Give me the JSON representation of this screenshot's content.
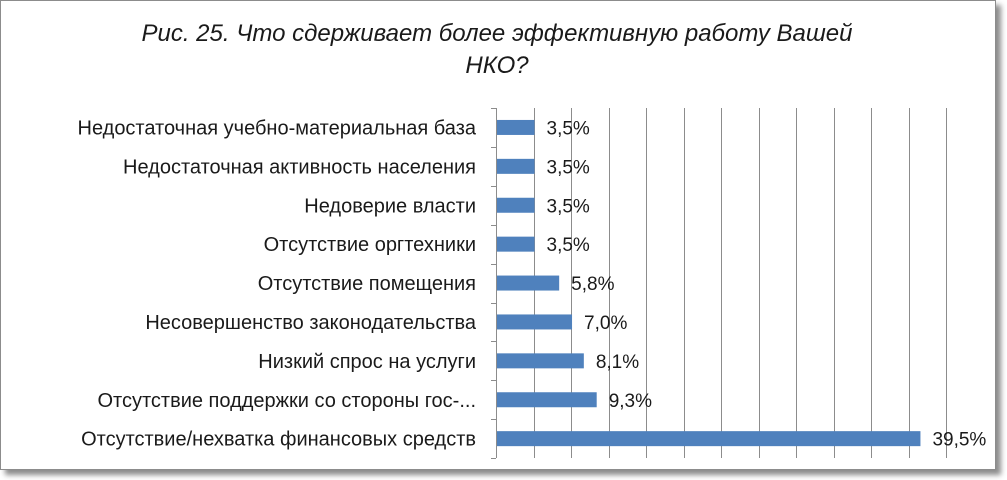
{
  "chart_data": {
    "type": "bar",
    "orientation": "horizontal",
    "title_lines": [
      "Рис. 25. Что сдерживает более эффективную работу Вашей",
      "НКО?"
    ],
    "categories": [
      "Недостаточная учебно-материальная база",
      "Недостаточная активность населения",
      "Недоверие власти",
      "Отсутствие оргтехники",
      "Отсутствие помещения",
      "Несовершенство законодательства",
      "Низкий спрос на услуги",
      "Отсутствие поддержки со стороны гос-...",
      "Отсутствие/нехватка финансовых средств"
    ],
    "values": [
      3.5,
      3.5,
      3.5,
      3.5,
      5.8,
      7.0,
      8.1,
      9.3,
      39.5
    ],
    "data_labels": [
      "3,5%",
      "3,5%",
      "3,5%",
      "3,5%",
      "5,8%",
      "7,0%",
      "8,1%",
      "9,3%",
      "39,5%"
    ],
    "xlim": [
      0,
      45
    ],
    "grid_step": 3.5,
    "xgrid": true,
    "bar_color": "#4f81bd",
    "grid_color": "#8c8c8c"
  }
}
